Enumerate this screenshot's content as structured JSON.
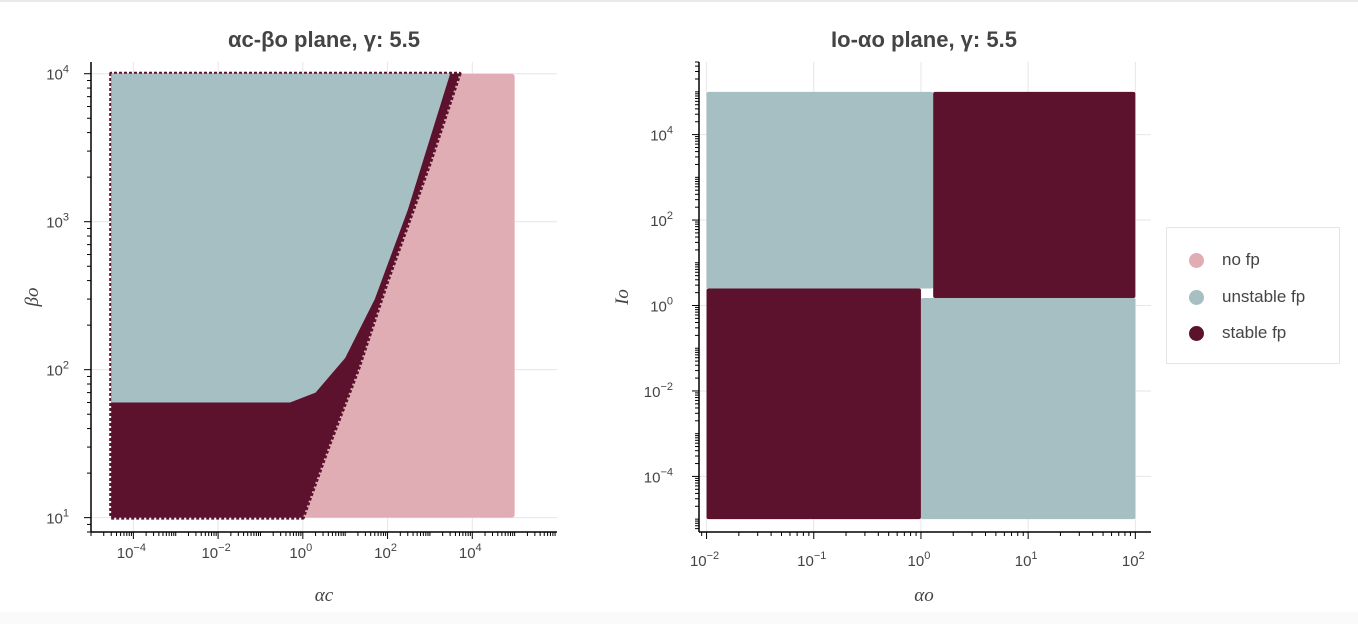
{
  "colors": {
    "no_fp": "#e0adb5",
    "unstable_fp": "#a6bfc2",
    "stable_fp": "#5c122d"
  },
  "legend": {
    "items": [
      {
        "label": "no fp",
        "color": "#e0adb5"
      },
      {
        "label": "unstable fp",
        "color": "#a6bfc2"
      },
      {
        "label": "stable fp",
        "color": "#5c122d"
      }
    ]
  },
  "chart_data": [
    {
      "type": "scatter",
      "title": "αc-βo plane, γ: 5.5",
      "xlabel": "αc",
      "ylabel": "βo",
      "x_scale": "log",
      "y_scale": "log",
      "xlim": [
        1e-05,
        1000000.0
      ],
      "ylim": [
        8,
        12000.0
      ],
      "x_ticks": [
        {
          "base": "10",
          "exp": "−4"
        },
        {
          "base": "10",
          "exp": "−2"
        },
        {
          "base": "10",
          "exp": "0"
        },
        {
          "base": "10",
          "exp": "2"
        },
        {
          "base": "10",
          "exp": "4"
        }
      ],
      "y_ticks": [
        {
          "base": "10",
          "exp": "1"
        },
        {
          "base": "10",
          "exp": "2"
        },
        {
          "base": "10",
          "exp": "3"
        },
        {
          "base": "10",
          "exp": "4"
        }
      ],
      "data_range": {
        "x": [
          3e-05,
          100000.0
        ],
        "y": [
          10,
          10000.0
        ]
      },
      "regions": [
        {
          "name": "unstable fp",
          "description": "upper-left region above stable band",
          "boundary_lower_beta": 60,
          "x_from": 3e-05,
          "x_to": 5000
        },
        {
          "name": "stable fp",
          "description": "band separating unstable from no fp",
          "band_left_edge": [
            [
              1,
              10
            ],
            [
              4,
              30
            ],
            [
              20,
              100
            ],
            [
              100,
              400
            ],
            [
              1000,
              2500
            ],
            [
              5000,
              10000
            ]
          ],
          "upper_edge": [
            [
              3e-05,
              60
            ],
            [
              0.5,
              60
            ],
            [
              2,
              70
            ],
            [
              10,
              120
            ],
            [
              50,
              300
            ],
            [
              300,
              1200
            ],
            [
              3000,
              10000
            ]
          ]
        },
        {
          "name": "no fp",
          "description": "lower-right region",
          "boundary": [
            [
              1,
              10
            ],
            [
              4,
              30
            ],
            [
              20,
              100
            ],
            [
              100,
              400
            ],
            [
              1000,
              2500
            ],
            [
              7000,
              10000
            ]
          ]
        }
      ]
    },
    {
      "type": "scatter",
      "title": "Io-αo plane, γ: 5.5",
      "xlabel": "αo",
      "ylabel": "Io",
      "x_scale": "log",
      "y_scale": "log",
      "xlim": [
        0.0085,
        140
      ],
      "ylim": [
        5e-06,
        500000.0
      ],
      "x_ticks": [
        {
          "base": "10",
          "exp": "−2"
        },
        {
          "base": "10",
          "exp": "−1"
        },
        {
          "base": "10",
          "exp": "0"
        },
        {
          "base": "10",
          "exp": "1"
        },
        {
          "base": "10",
          "exp": "2"
        }
      ],
      "y_ticks": [
        {
          "base": "10",
          "exp": "−4"
        },
        {
          "base": "10",
          "exp": "−2"
        },
        {
          "base": "10",
          "exp": "0"
        },
        {
          "base": "10",
          "exp": "2"
        },
        {
          "base": "10",
          "exp": "4"
        }
      ],
      "data_range": {
        "x": [
          0.01,
          100
        ],
        "y": [
          1e-05,
          100000.0
        ]
      },
      "regions": [
        {
          "name": "unstable fp",
          "x": [
            0.01,
            1.3
          ],
          "y": [
            2.5,
            100000.0
          ]
        },
        {
          "name": "stable fp",
          "x": [
            1.3,
            100
          ],
          "y": [
            1.5,
            100000.0
          ]
        },
        {
          "name": "stable fp",
          "x": [
            0.01,
            1.0
          ],
          "y": [
            1e-05,
            2.5
          ]
        },
        {
          "name": "unstable fp",
          "x": [
            1.0,
            100
          ],
          "y": [
            1e-05,
            1.5
          ]
        }
      ]
    }
  ]
}
